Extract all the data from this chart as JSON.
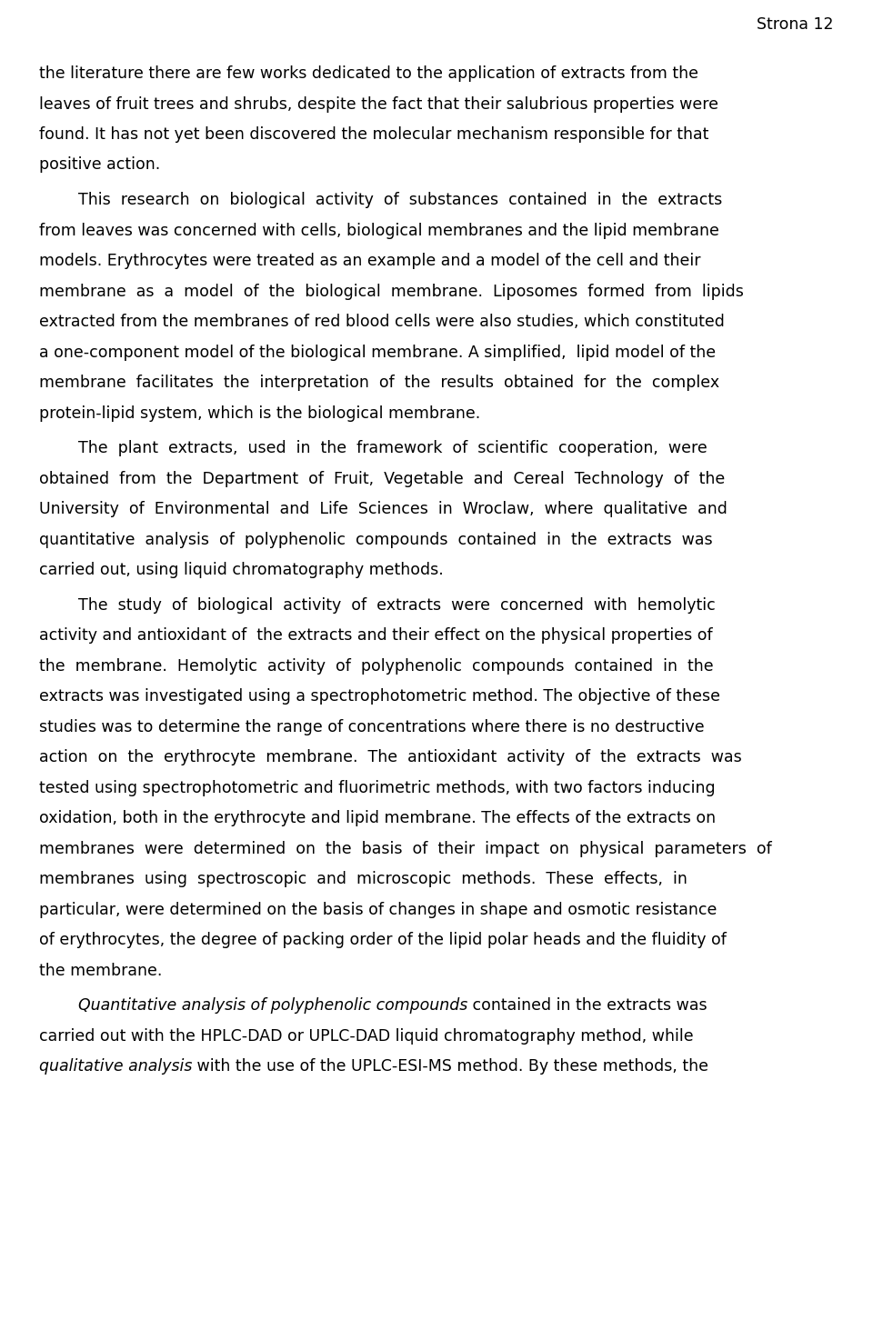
{
  "page_header": "Strona 12",
  "background_color": "#ffffff",
  "text_color": "#000000",
  "paragraphs": [
    {
      "indent": false,
      "segments": [
        [
          {
            "text": "the literature there are few works dedicated to the application of extracts from the",
            "italic": false
          }
        ],
        [
          {
            "text": "leaves of fruit trees and shrubs, despite the fact that their salubrious properties were",
            "italic": false
          }
        ],
        [
          {
            "text": "found. It has not yet been discovered the molecular mechanism responsible for that",
            "italic": false
          }
        ],
        [
          {
            "text": "positive action.",
            "italic": false
          }
        ]
      ]
    },
    {
      "indent": true,
      "segments": [
        [
          {
            "text": "This  research  on  biological  activity  of  substances  contained  in  the  extracts",
            "italic": false
          }
        ],
        [
          {
            "text": "from leaves was concerned with cells, biological membranes and the lipid membrane",
            "italic": false
          }
        ],
        [
          {
            "text": "models. Erythrocytes were treated as an example and a model of the cell and their",
            "italic": false
          }
        ],
        [
          {
            "text": "membrane  as  a  model  of  the  biological  membrane.  Liposomes  formed  from  lipids",
            "italic": false
          }
        ],
        [
          {
            "text": "extracted from the membranes of red blood cells were also studies, which constituted",
            "italic": false
          }
        ],
        [
          {
            "text": "a one-component model of the biological membrane. A simplified,  lipid model of the",
            "italic": false
          }
        ],
        [
          {
            "text": "membrane  facilitates  the  interpretation  of  the  results  obtained  for  the  complex",
            "italic": false
          }
        ],
        [
          {
            "text": "protein-lipid system, which is the biological membrane.",
            "italic": false
          }
        ]
      ]
    },
    {
      "indent": true,
      "segments": [
        [
          {
            "text": "The  plant  extracts,  used  in  the  framework  of  scientific  cooperation,  were",
            "italic": false
          }
        ],
        [
          {
            "text": "obtained  from  the  Department  of  Fruit,  Vegetable  and  Cereal  Technology  of  the",
            "italic": false
          }
        ],
        [
          {
            "text": "University  of  Environmental  and  Life  Sciences  in  Wroclaw,  where  qualitative  and",
            "italic": false
          }
        ],
        [
          {
            "text": "quantitative  analysis  of  polyphenolic  compounds  contained  in  the  extracts  was",
            "italic": false
          }
        ],
        [
          {
            "text": "carried out, using liquid chromatography methods.",
            "italic": false
          }
        ]
      ]
    },
    {
      "indent": true,
      "segments": [
        [
          {
            "text": "The  study  of  biological  activity  of  extracts  were  concerned  with  hemolytic",
            "italic": false
          }
        ],
        [
          {
            "text": "activity and antioxidant of  the extracts and their effect on the physical properties of",
            "italic": false
          }
        ],
        [
          {
            "text": "the  membrane.  Hemolytic  activity  of  polyphenolic  compounds  contained  in  the",
            "italic": false
          }
        ],
        [
          {
            "text": "extracts was investigated using a spectrophotometric method. The objective of these",
            "italic": false
          }
        ],
        [
          {
            "text": "studies was to determine the range of concentrations where there is no destructive",
            "italic": false
          }
        ],
        [
          {
            "text": "action  on  the  erythrocyte  membrane.  The  antioxidant  activity  of  the  extracts  was",
            "italic": false
          }
        ],
        [
          {
            "text": "tested using spectrophotometric and fluorimetric methods, with two factors inducing",
            "italic": false
          }
        ],
        [
          {
            "text": "oxidation, both in the erythrocyte and lipid membrane. The effects of the extracts on",
            "italic": false
          }
        ],
        [
          {
            "text": "membranes  were  determined  on  the  basis  of  their  impact  on  physical  parameters  of",
            "italic": false
          }
        ],
        [
          {
            "text": "membranes  using  spectroscopic  and  microscopic  methods.  These  effects,  in",
            "italic": false
          }
        ],
        [
          {
            "text": "particular, were determined on the basis of changes in shape and osmotic resistance",
            "italic": false
          }
        ],
        [
          {
            "text": "of erythrocytes, the degree of packing order of the lipid polar heads and the fluidity of",
            "italic": false
          }
        ],
        [
          {
            "text": "the membrane.",
            "italic": false
          }
        ]
      ]
    },
    {
      "indent": true,
      "segments": [
        [
          {
            "text": "Quantitative analysis of polyphenolic compounds",
            "italic": true
          },
          {
            "text": " contained in the extracts was",
            "italic": false
          }
        ],
        [
          {
            "text": "carried out with the HPLC-DAD or UPLC-DAD liquid chromatography method, while",
            "italic": false
          }
        ],
        [
          {
            "text": "qualitative analysis",
            "italic": true
          },
          {
            "text": " with the use of the UPLC-ESI-MS method. By these methods, the",
            "italic": false
          }
        ]
      ]
    }
  ]
}
